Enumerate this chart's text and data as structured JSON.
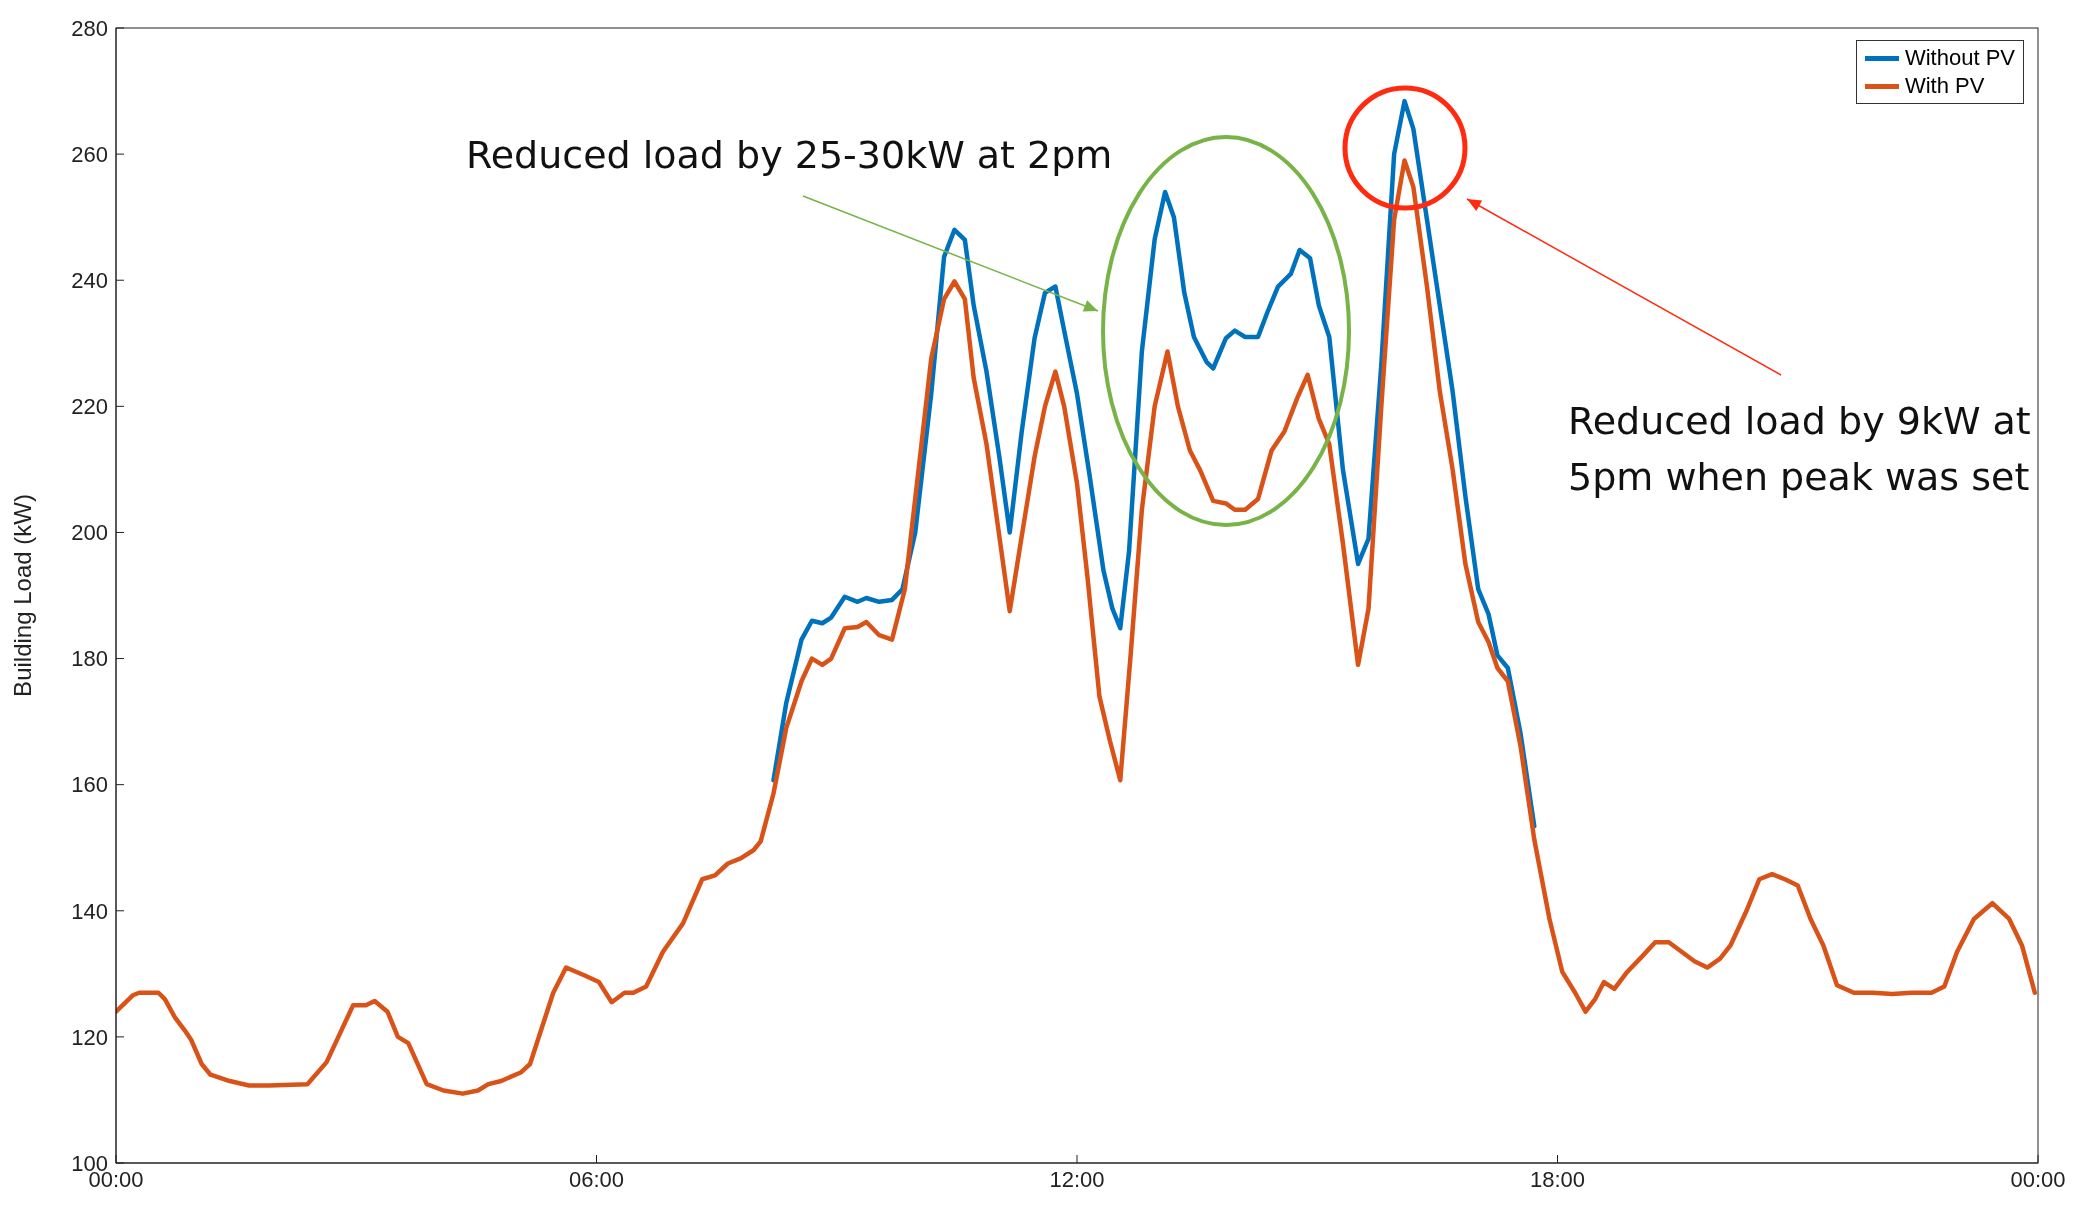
{
  "chart_data": {
    "type": "line",
    "ylabel": "Building Load (kW)",
    "xlim": [
      0,
      24
    ],
    "xticks": [
      {
        "value": 0,
        "label": "00:00"
      },
      {
        "value": 6,
        "label": "06:00"
      },
      {
        "value": 12,
        "label": "12:00"
      },
      {
        "value": 18,
        "label": "18:00"
      },
      {
        "value": 24,
        "label": "00:00"
      }
    ],
    "ylim": [
      100,
      280
    ],
    "yticks": [
      100,
      120,
      140,
      160,
      180,
      200,
      220,
      240,
      260,
      280
    ],
    "grid": false,
    "legend": "top right",
    "line_style": "solid",
    "series": [
      {
        "name": "Without PV",
        "color": "#0072bd",
        "x": [
          8.21,
          8.37,
          8.56,
          8.69,
          8.82,
          8.93,
          9.1,
          9.26,
          9.37,
          9.53,
          9.69,
          9.82,
          9.98,
          10.18,
          10.34,
          10.47,
          10.6,
          10.71,
          10.87,
          11.03,
          11.16,
          11.31,
          11.47,
          11.6,
          11.73,
          11.84,
          12,
          12.16,
          12.33,
          12.44,
          12.54,
          12.65,
          12.81,
          12.97,
          13.1,
          13.21,
          13.34,
          13.46,
          13.62,
          13.7,
          13.86,
          13.97,
          14.1,
          14.26,
          14.38,
          14.51,
          14.67,
          14.78,
          14.91,
          15.02,
          15.15,
          15.32,
          15.51,
          15.64,
          15.8,
          15.96,
          16.09,
          16.2,
          16.37,
          16.53,
          16.69,
          16.85,
          17.01,
          17.14,
          17.25,
          17.38,
          17.54,
          17.71
        ],
        "values": [
          160.7,
          173,
          183,
          186,
          185.6,
          186.5,
          189.8,
          189,
          189.6,
          189,
          189.3,
          191,
          200,
          222,
          243.7,
          248,
          246.4,
          236,
          225.5,
          212,
          200,
          216,
          230.8,
          238,
          239,
          232,
          222,
          208.8,
          194,
          188,
          184.8,
          197,
          228.7,
          246.5,
          254,
          250,
          238,
          231,
          227,
          226,
          230.8,
          232,
          231,
          231,
          235,
          239,
          241,
          244.8,
          243.5,
          236,
          231,
          210,
          195,
          199,
          226.6,
          260,
          268.4,
          264,
          249.6,
          236,
          222.4,
          205.7,
          191,
          187,
          180.5,
          178.5,
          168,
          153.4
        ]
      },
      {
        "name": "With PV",
        "color": "#d95319",
        "x": [
          0,
          0.21,
          0.29,
          0.53,
          0.61,
          0.74,
          0.86,
          0.94,
          1.07,
          1.18,
          1.42,
          1.66,
          1.91,
          2.39,
          2.63,
          2.96,
          3.12,
          3.23,
          3.39,
          3.52,
          3.65,
          3.88,
          4.09,
          4.33,
          4.52,
          4.65,
          4.81,
          5.06,
          5.17,
          5.46,
          5.62,
          5.86,
          6.03,
          6.19,
          6.35,
          6.46,
          6.62,
          6.83,
          7.08,
          7.32,
          7.48,
          7.64,
          7.8,
          7.96,
          8.05,
          8.21,
          8.37,
          8.56,
          8.69,
          8.82,
          8.93,
          9.1,
          9.26,
          9.37,
          9.53,
          9.69,
          9.85,
          10.02,
          10.18,
          10.34,
          10.47,
          10.6,
          10.71,
          10.87,
          11.03,
          11.16,
          11.31,
          11.47,
          11.6,
          11.73,
          11.84,
          12,
          12.13,
          12.28,
          12.41,
          12.54,
          12.67,
          12.81,
          12.97,
          13.13,
          13.26,
          13.41,
          13.54,
          13.7,
          13.86,
          13.97,
          14.1,
          14.26,
          14.43,
          14.59,
          14.75,
          14.88,
          15.02,
          15.15,
          15.32,
          15.51,
          15.64,
          15.8,
          15.96,
          16.09,
          16.2,
          16.37,
          16.53,
          16.69,
          16.85,
          17.01,
          17.14,
          17.25,
          17.38,
          17.54,
          17.71,
          17.9,
          18.06,
          18.22,
          18.35,
          18.47,
          18.58,
          18.71,
          18.87,
          19.06,
          19.22,
          19.39,
          19.55,
          19.71,
          19.87,
          20.03,
          20.16,
          20.36,
          20.52,
          20.68,
          20.84,
          21,
          21.16,
          21.32,
          21.49,
          21.7,
          21.94,
          22.18,
          22.42,
          22.67,
          22.83,
          22.99,
          23.2,
          23.43,
          23.64,
          23.8,
          23.96
        ],
        "values": [
          124,
          126.6,
          127,
          127,
          126,
          123,
          121,
          119.5,
          115.7,
          114,
          113,
          112.3,
          112.3,
          112.5,
          116,
          125,
          125,
          125.7,
          124,
          120,
          119,
          112.5,
          111.5,
          111,
          111.5,
          112.5,
          113,
          114.4,
          115.7,
          127,
          131,
          129.7,
          128.7,
          125.5,
          127,
          127,
          128,
          133.5,
          138,
          145,
          145.6,
          147.5,
          148.3,
          149.6,
          151,
          158.6,
          169,
          176.4,
          180,
          179,
          180,
          184.8,
          185,
          185.8,
          183.7,
          183,
          191,
          209.8,
          227.6,
          237,
          239.8,
          237,
          224.5,
          214,
          199.4,
          187.5,
          199.4,
          212,
          220,
          225.5,
          220,
          207.8,
          193,
          174,
          167,
          160.7,
          180.6,
          203.6,
          220,
          228.7,
          220,
          213,
          209.8,
          205,
          204.6,
          203.6,
          203.6,
          205.3,
          213,
          216,
          221.3,
          225,
          218,
          214,
          198.3,
          179,
          187.9,
          220,
          249.6,
          259,
          254.8,
          239,
          222.4,
          210,
          195,
          185.8,
          182.6,
          178.5,
          176.4,
          166,
          151.3,
          138.7,
          130.3,
          127,
          124,
          126,
          128.7,
          127.6,
          130.3,
          132.8,
          135,
          135,
          133.5,
          132,
          131,
          132.4,
          134.5,
          140,
          145,
          145.8,
          145,
          144,
          138.7,
          134.5,
          128.2,
          127,
          127,
          126.8,
          127,
          127,
          128,
          133.5,
          138.7,
          141.2,
          138.7,
          134.5,
          127
        ]
      }
    ],
    "annotations": [
      "Reduced load by 25-30kW at 2pm",
      "Reduced load by 9kW at 5pm when peak was set"
    ]
  }
}
